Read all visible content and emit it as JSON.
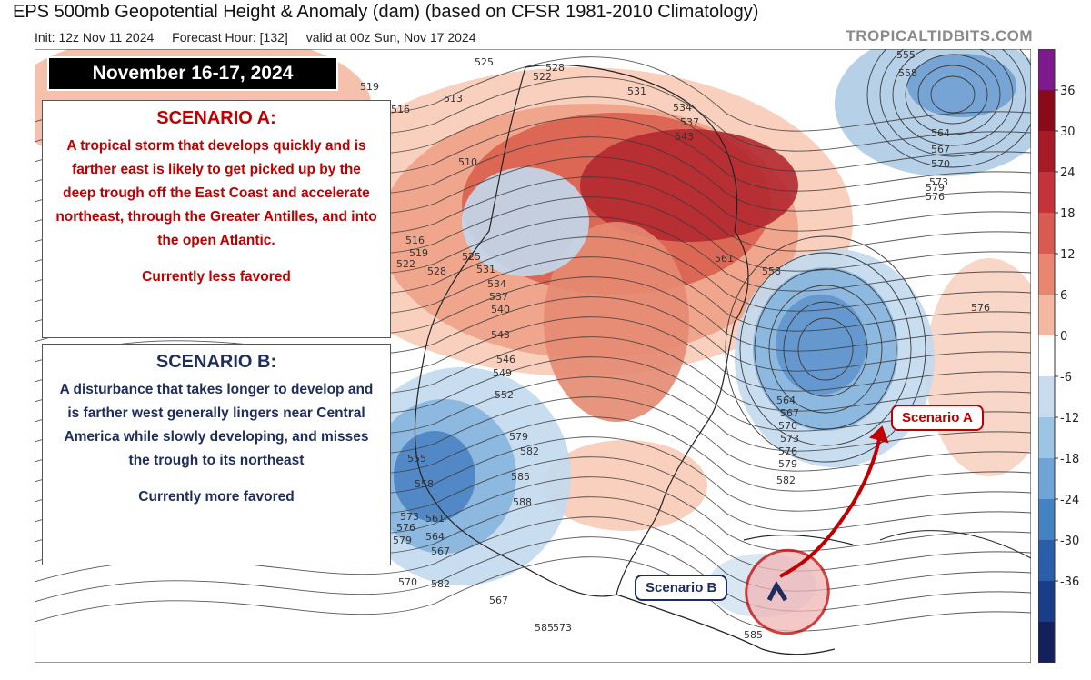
{
  "header": {
    "title": "EPS 500mb Geopotential Height & Anomaly (dam) (based on CFSR 1981-2010 Climatology)",
    "init": "Init: 12z Nov 11 2024",
    "forecast_hour": "Forecast Hour: [132]",
    "valid": "valid at 00z Sun, Nov 17 2024",
    "brand": "TROPICALTIDBITS.COM"
  },
  "annotations": {
    "date_label": "November 16-17, 2024",
    "scenario_a": {
      "heading": "SCENARIO A:",
      "body": "A tropical storm that develops quickly and is farther east is likely to get picked up by the deep trough off the East Coast and accelerate northeast, through the Greater Antilles, and into the open Atlantic.",
      "status": "Currently less favored",
      "tag": "Scenario A",
      "color": "#c00000"
    },
    "scenario_b": {
      "heading": "SCENARIO B:",
      "body": "A disturbance that takes longer to develop and is farther west generally lingers near Central America while slowly developing, and misses the trough to its northeast",
      "status": "Currently more favored",
      "tag": "Scenario B",
      "color": "#1f2d5c"
    }
  },
  "contour_labels": [
    "519",
    "516",
    "513",
    "510",
    "516",
    "519",
    "522",
    "528",
    "525",
    "525",
    "522",
    "528",
    "531",
    "534",
    "537",
    "543",
    "531",
    "534",
    "537",
    "540",
    "543",
    "546",
    "549",
    "552",
    "555",
    "558",
    "561",
    "564",
    "567",
    "570",
    "573",
    "576",
    "579",
    "582",
    "585",
    "588",
    "561",
    "558",
    "564",
    "567",
    "570",
    "573",
    "576",
    "579",
    "582",
    "564",
    "567",
    "570",
    "573",
    "576",
    "579",
    "555",
    "558",
    "567",
    "573",
    "576",
    "579",
    "582",
    "585",
    "585"
  ],
  "colorbar": {
    "ticks": [
      "36",
      "30",
      "24",
      "18",
      "12",
      "6",
      "0",
      "-6",
      "-12",
      "-18",
      "-24",
      "-30",
      "-36"
    ],
    "colors": [
      "#7d1a8c",
      "#8b0a1a",
      "#a81a25",
      "#c4333a",
      "#d95a50",
      "#e8866f",
      "#f4b8a0",
      "#ffffff",
      "#c8dcee",
      "#9cc4e4",
      "#6fa5d6",
      "#4582c2",
      "#2a5ea8",
      "#1a3d8a",
      "#14205c"
    ]
  }
}
